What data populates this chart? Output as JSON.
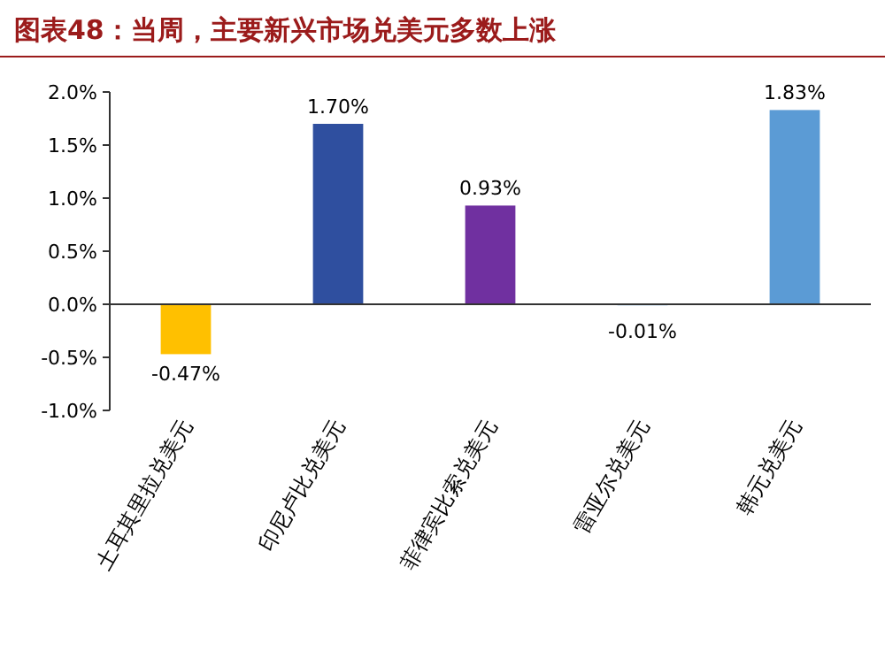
{
  "chart_data": {
    "type": "bar",
    "title": "图表48：当周，主要新兴市场兑美元多数上涨",
    "categories": [
      "土耳其里拉兑美元",
      "印尼卢比兑美元",
      "菲律宾比索兑美元",
      "雷亚尔兑美元",
      "韩元兑美元"
    ],
    "values": [
      -0.47,
      1.7,
      0.93,
      -0.01,
      1.83
    ],
    "colors": [
      "#ffc000",
      "#2f4f9f",
      "#7030a0",
      "#5b9bd5",
      "#5b9bd5"
    ],
    "value_labels": [
      "-0.47%",
      "1.70%",
      "0.93%",
      "-0.01%",
      "1.83%"
    ],
    "ylim": [
      -1.0,
      2.0
    ],
    "yticks": [
      {
        "value": -1.0,
        "label": "-1.0%"
      },
      {
        "value": -0.5,
        "label": "-0.5%"
      },
      {
        "value": 0,
        "label": "0.0%"
      },
      {
        "value": 0.5,
        "label": "0.5%"
      },
      {
        "value": 1.0,
        "label": "1.0%"
      },
      {
        "value": 1.5,
        "label": "1.5%"
      },
      {
        "value": 2.0,
        "label": "2.0%"
      }
    ]
  }
}
